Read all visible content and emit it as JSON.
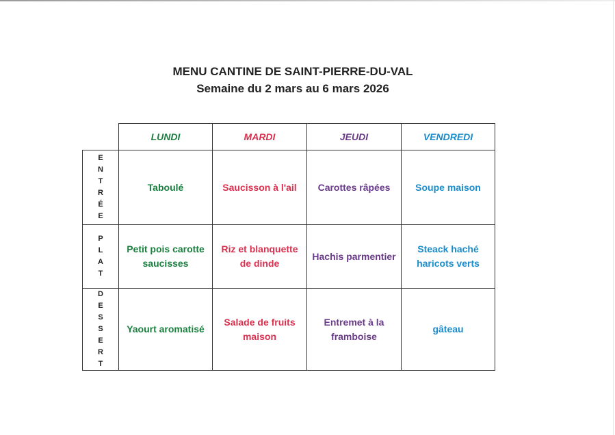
{
  "title": "MENU CANTINE DE SAINT-PIERRE-DU-VAL",
  "subtitle": "Semaine du 2 mars au 6 mars 2026",
  "days": [
    {
      "label": "LUNDI",
      "color": "#1a7f3f"
    },
    {
      "label": "MARDI",
      "color": "#d9304f"
    },
    {
      "label": "JEUDI",
      "color": "#6a3a8a"
    },
    {
      "label": "VENDREDI",
      "color": "#1a8ccc"
    }
  ],
  "rows": [
    {
      "label": "ENTRÉE",
      "items": [
        "Taboulé",
        "Saucisson à l'ail",
        "Carottes râpées",
        "Soupe maison"
      ]
    },
    {
      "label": "PLAT",
      "items": [
        "Petit pois carotte saucisses",
        "Riz et blanquette de dinde",
        "Hachis parmentier",
        "Steack haché haricots verts"
      ]
    },
    {
      "label": "DESSERT",
      "items": [
        "Yaourt aromatisé",
        "Salade de fruits maison",
        "Entremet à la framboise",
        "gâteau"
      ]
    }
  ]
}
